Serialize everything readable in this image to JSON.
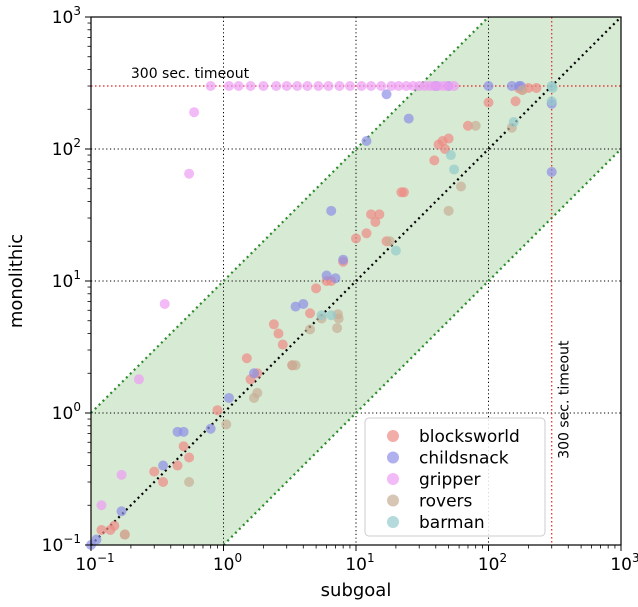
{
  "chart_data": {
    "type": "scatter",
    "xlabel": "subgoal",
    "ylabel": "monolithic",
    "xscale": "log",
    "yscale": "log",
    "xlim": [
      0.1,
      1000
    ],
    "ylim": [
      0.1,
      1000
    ],
    "x_ticks": [
      {
        "value": 0.1,
        "base": "10",
        "exp": "−1"
      },
      {
        "value": 1,
        "base": "10",
        "exp": "0"
      },
      {
        "value": 10,
        "base": "10",
        "exp": "1"
      },
      {
        "value": 100,
        "base": "10",
        "exp": "2"
      },
      {
        "value": 1000,
        "base": "10",
        "exp": "3"
      }
    ],
    "y_ticks": [
      {
        "value": 0.1,
        "base": "10",
        "exp": "−1"
      },
      {
        "value": 1,
        "base": "10",
        "exp": "0"
      },
      {
        "value": 10,
        "base": "10",
        "exp": "1"
      },
      {
        "value": 100,
        "base": "10",
        "exp": "2"
      },
      {
        "value": 1000,
        "base": "10",
        "exp": "3"
      }
    ],
    "grid": "dotted black at decades",
    "diagonal": "y = x, dotted black",
    "band": {
      "description": "green shaded band between y = x/10 and y = 10x",
      "lower_factor": 0.1,
      "upper_factor": 10,
      "fill": "#d7ead3",
      "edge_color": "#2a8a2a"
    },
    "timeout": {
      "value": 300,
      "label_horizontal": "300 sec. timeout",
      "label_vertical": "300 sec. timeout",
      "color": "#e02020"
    },
    "legend_position": "lower-right",
    "series": [
      {
        "name": "blocksworld",
        "color": "#ee8a84",
        "points": [
          [
            0.12,
            0.13
          ],
          [
            0.14,
            0.13
          ],
          [
            0.15,
            0.14
          ],
          [
            0.18,
            0.12
          ],
          [
            0.3,
            0.36
          ],
          [
            0.35,
            0.3
          ],
          [
            0.45,
            0.4
          ],
          [
            0.5,
            0.56
          ],
          [
            0.55,
            0.46
          ],
          [
            0.9,
            1.05
          ],
          [
            1.5,
            2.6
          ],
          [
            1.6,
            1.8
          ],
          [
            1.8,
            2.0
          ],
          [
            2.4,
            4.7
          ],
          [
            2.6,
            4.0
          ],
          [
            2.8,
            3.3
          ],
          [
            3.3,
            2.3
          ],
          [
            4.5,
            5.7
          ],
          [
            5,
            8.8
          ],
          [
            6,
            10
          ],
          [
            6.5,
            10
          ],
          [
            8,
            14
          ],
          [
            10,
            21
          ],
          [
            12,
            23
          ],
          [
            13,
            32
          ],
          [
            14,
            28
          ],
          [
            15,
            32
          ],
          [
            17,
            20
          ],
          [
            22,
            47
          ],
          [
            23,
            47
          ],
          [
            39,
            82
          ],
          [
            42,
            108
          ],
          [
            45,
            115
          ],
          [
            47,
            100
          ],
          [
            50,
            120
          ],
          [
            70,
            150
          ],
          [
            100,
            225
          ],
          [
            160,
            230
          ],
          [
            170,
            288
          ],
          [
            180,
            280
          ],
          [
            200,
            290
          ],
          [
            230,
            290
          ]
        ]
      },
      {
        "name": "childsnack",
        "color": "#8d8ee6",
        "points": [
          [
            0.1,
            0.1
          ],
          [
            0.11,
            0.11
          ],
          [
            0.17,
            0.18
          ],
          [
            0.35,
            0.4
          ],
          [
            0.45,
            0.72
          ],
          [
            0.5,
            0.72
          ],
          [
            0.8,
            0.76
          ],
          [
            1.1,
            1.3
          ],
          [
            1.7,
            2.0
          ],
          [
            3.5,
            6.4
          ],
          [
            4,
            6.7
          ],
          [
            6,
            11
          ],
          [
            7,
            10.5
          ],
          [
            8,
            14.5
          ],
          [
            6.5,
            34
          ],
          [
            12,
            115
          ],
          [
            17,
            260
          ],
          [
            25,
            170
          ],
          [
            40,
            300
          ],
          [
            50,
            300
          ],
          [
            100,
            300
          ],
          [
            150,
            300
          ],
          [
            170,
            300
          ],
          [
            175,
            300
          ],
          [
            300,
            220
          ],
          [
            300,
            67
          ]
        ]
      },
      {
        "name": "gripper",
        "color": "#ec9cf3",
        "points": [
          [
            0.12,
            0.2
          ],
          [
            0.17,
            0.34
          ],
          [
            0.23,
            1.8
          ],
          [
            0.36,
            6.7
          ],
          [
            0.55,
            65
          ],
          [
            0.6,
            190
          ],
          [
            0.8,
            300
          ],
          [
            1.1,
            300
          ],
          [
            1.3,
            300
          ],
          [
            1.6,
            300
          ],
          [
            2,
            300
          ],
          [
            2.5,
            300
          ],
          [
            3,
            300
          ],
          [
            3.6,
            300
          ],
          [
            4.3,
            300
          ],
          [
            5.2,
            300
          ],
          [
            6.2,
            300
          ],
          [
            7.5,
            300
          ],
          [
            9,
            300
          ],
          [
            11,
            300
          ],
          [
            13,
            300
          ],
          [
            15.5,
            300
          ],
          [
            18.5,
            300
          ],
          [
            21,
            300
          ],
          [
            24,
            300
          ],
          [
            27,
            300
          ],
          [
            30,
            300
          ],
          [
            33,
            300
          ],
          [
            36,
            300
          ],
          [
            39,
            300
          ],
          [
            42,
            300
          ],
          [
            46,
            300
          ],
          [
            50,
            300
          ],
          [
            55,
            300
          ]
        ]
      },
      {
        "name": "rovers",
        "color": "#c7ae96",
        "points": [
          [
            0.18,
            0.12
          ],
          [
            0.55,
            0.3
          ],
          [
            1.05,
            0.82
          ],
          [
            1.7,
            1.3
          ],
          [
            1.8,
            1.42
          ],
          [
            3.3,
            2.3
          ],
          [
            3.5,
            2.3
          ],
          [
            4.5,
            4.3
          ],
          [
            5.5,
            5.2
          ],
          [
            7.2,
            4.4
          ],
          [
            7.3,
            5.6
          ],
          [
            7.4,
            5.2
          ],
          [
            18,
            20
          ],
          [
            50,
            34
          ],
          [
            62,
            52
          ],
          [
            80,
            150
          ],
          [
            150,
            145
          ],
          [
            180,
            280
          ]
        ]
      },
      {
        "name": "barman",
        "color": "#94cacc",
        "points": [
          [
            5.5,
            5.5
          ],
          [
            6.5,
            5.5
          ],
          [
            20,
            17
          ],
          [
            52,
            90
          ],
          [
            55,
            70
          ],
          [
            155,
            160
          ],
          [
            300,
            300
          ],
          [
            305,
            290
          ],
          [
            300,
            230
          ]
        ]
      }
    ]
  }
}
